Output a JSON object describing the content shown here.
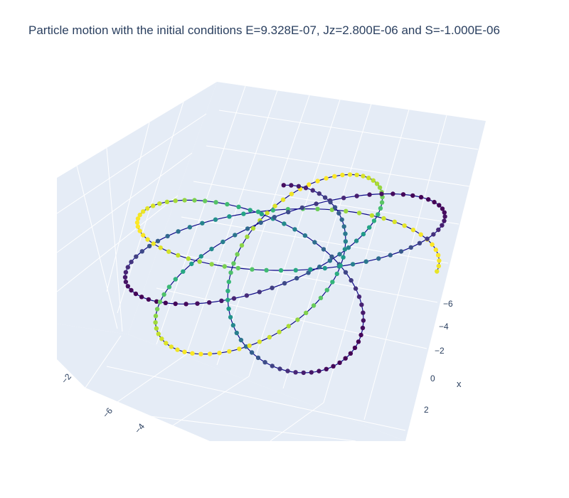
{
  "chart_data": {
    "type": "scatter3d",
    "title": "Particle motion with the initial conditions E=9.328E-07, Jz=2.800E-06 and S=-1.000E-06",
    "mode": "lines+markers",
    "line_color": "#0d0887",
    "colorscale": "Viridis",
    "background": "#e5ecf6",
    "grid_color": "#ffffff",
    "x_axis": {
      "label": "x",
      "ticks": [
        "−6",
        "−4",
        "−2",
        "0",
        "2"
      ]
    },
    "y_axis": {
      "label": "",
      "ticks": [
        "−6",
        "−4",
        "−2"
      ]
    },
    "z_axis": {
      "label": "",
      "ticks": []
    },
    "grid": true,
    "legend": "none"
  }
}
